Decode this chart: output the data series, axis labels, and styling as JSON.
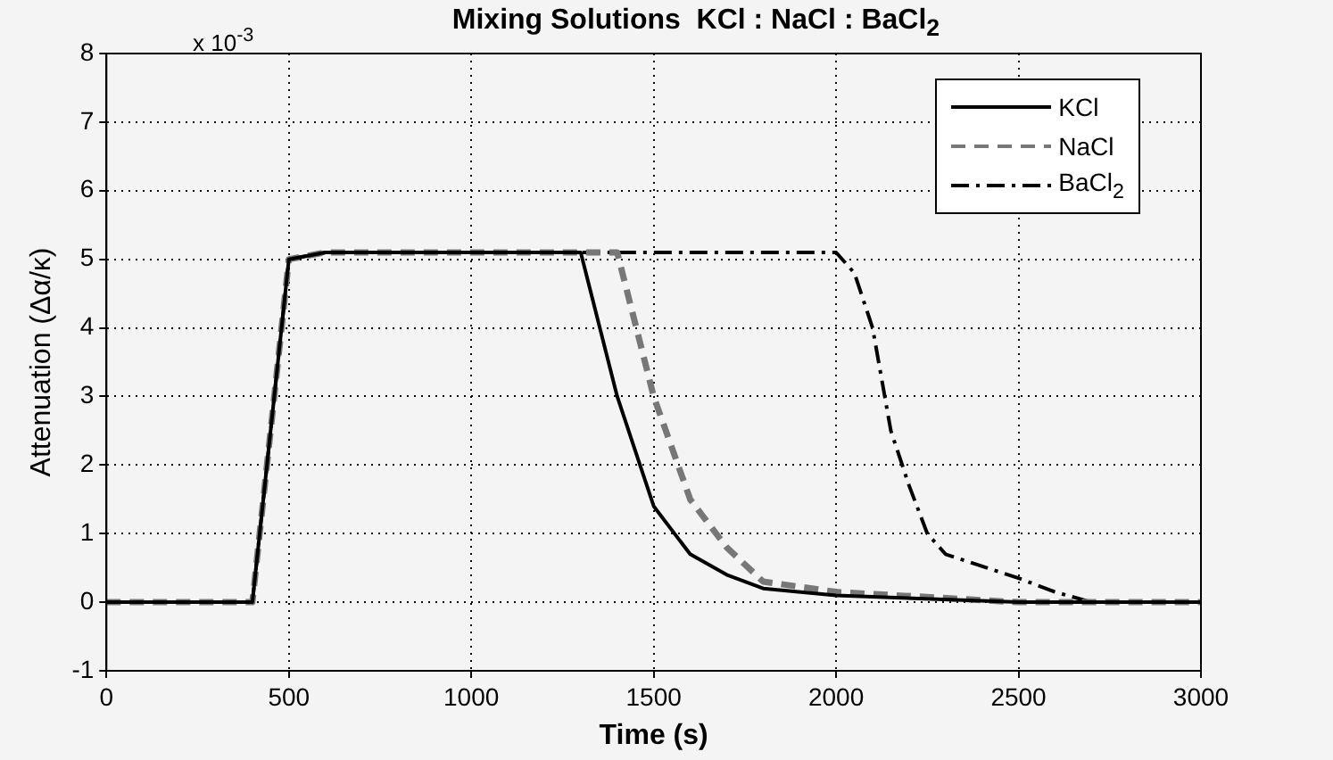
{
  "chart_data": {
    "type": "line",
    "title": "Mixing Solutions  KCl : NaCl : BaCl$_{2}$",
    "xlabel": "Time (s)",
    "ylabel": "Attenuation (Δα/κ)",
    "annotations": [
      "x 10$^{-3}$"
    ],
    "xlim": [
      0,
      3000
    ],
    "xticks": [
      0,
      500,
      1000,
      1500,
      2000,
      2500,
      3000
    ],
    "ylim": [
      -1,
      8
    ],
    "yticks": [
      -1,
      0,
      1,
      2,
      3,
      4,
      5,
      6,
      7,
      8
    ],
    "grid": true,
    "legend": "top right",
    "marker": "none",
    "series": [
      {
        "name": "KCl",
        "color": "#000000",
        "line_style": "solid",
        "x": [
          0,
          400,
          500,
          600,
          1300,
          1400,
          1500,
          1600,
          1700,
          1800,
          2000,
          2500,
          3000
        ],
        "values": [
          0,
          0,
          5,
          5.1,
          5.1,
          3,
          1.4,
          0.7,
          0.4,
          0.2,
          0.1,
          0,
          0
        ]
      },
      {
        "name": "NaCl",
        "color": "#777777",
        "line_style": "dashed",
        "x": [
          0,
          400,
          500,
          600,
          1400,
          1500,
          1600,
          1700,
          1800,
          2000,
          2500,
          3000
        ],
        "values": [
          0,
          0,
          5,
          5.1,
          5.1,
          3,
          1.5,
          0.8,
          0.3,
          0.15,
          0,
          0
        ]
      },
      {
        "name": "BaCl$_{2}$",
        "color": "#000000",
        "line_style": "dashdot",
        "x": [
          0,
          400,
          500,
          600,
          2000,
          2050,
          2100,
          2150,
          2200,
          2250,
          2300,
          2500,
          2600,
          2700,
          3000
        ],
        "values": [
          0,
          0,
          5,
          5.1,
          5.1,
          4.8,
          4,
          2.5,
          1.7,
          1,
          0.7,
          0.35,
          0.15,
          0,
          0
        ]
      }
    ]
  }
}
